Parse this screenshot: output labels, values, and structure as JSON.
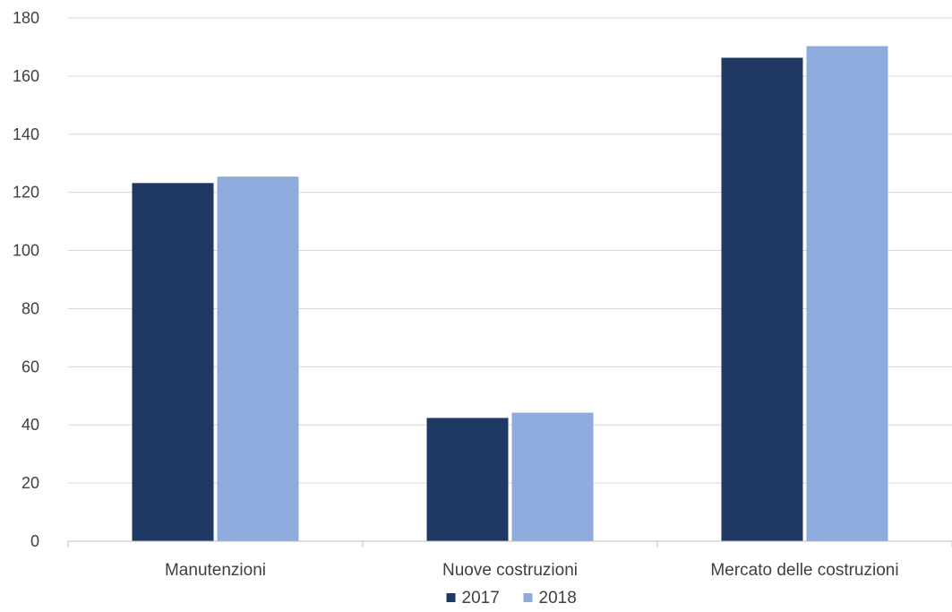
{
  "chart_data": {
    "type": "bar",
    "title": "",
    "xlabel": "",
    "ylabel": "",
    "categories": [
      "Manutenzioni",
      "Nuove costruzioni",
      "Mercato delle costruzioni"
    ],
    "series": [
      {
        "name": "2017",
        "values": [
          123.2,
          42.4,
          166.3
        ],
        "color": "#203864"
      },
      {
        "name": "2018",
        "values": [
          125.4,
          44.2,
          170.3
        ],
        "color": "#8FAADC"
      }
    ],
    "ylim": [
      0,
      180
    ],
    "yticks": [
      0,
      20,
      40,
      60,
      80,
      100,
      120,
      140,
      160,
      180
    ],
    "grid": true,
    "grid_color": "#D9D9D9",
    "axis_color": "#BFBFBF",
    "legend_position": "bottom"
  }
}
